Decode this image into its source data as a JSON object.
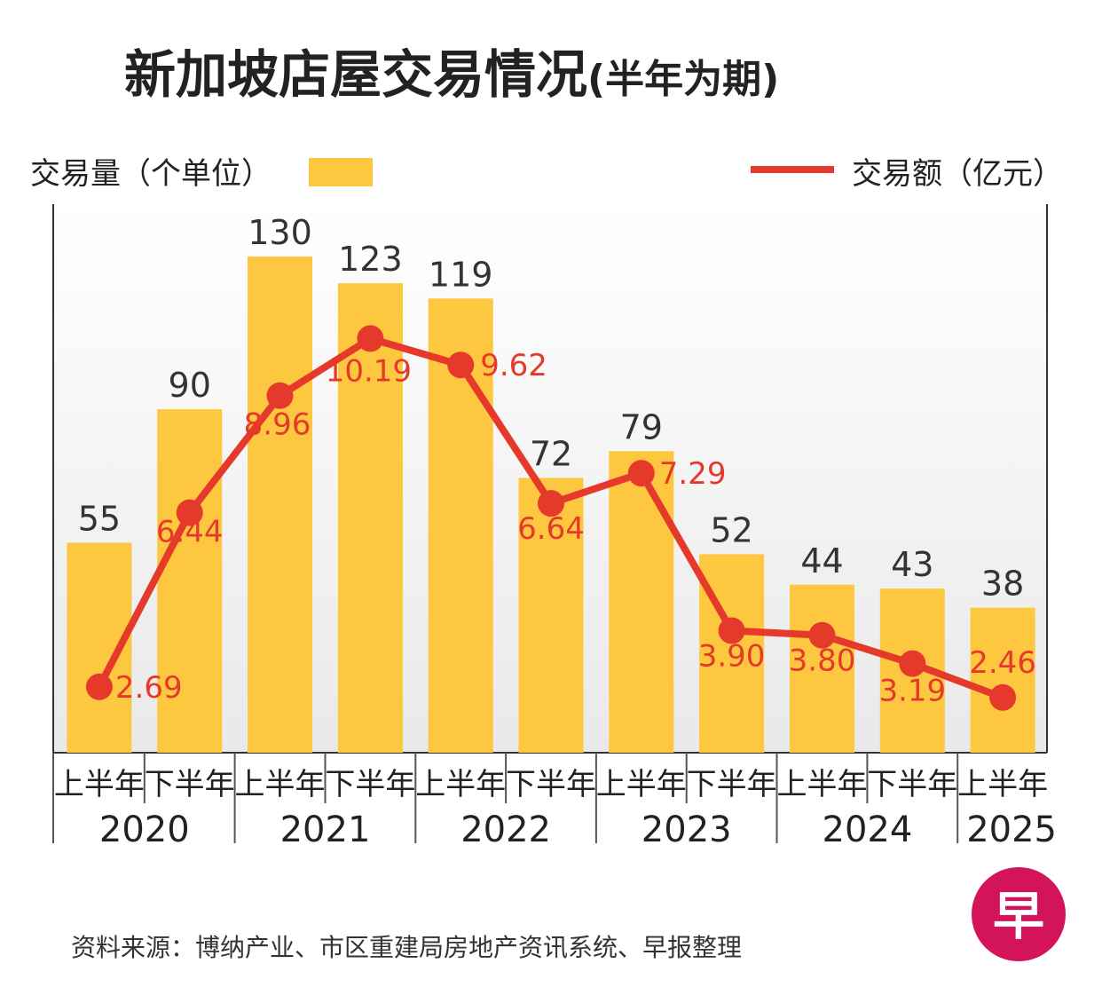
{
  "title": "新加坡店屋交易情况",
  "title_suffix": "(半年为期)",
  "legend": {
    "bars_label": "交易量（个单位）",
    "line_label": "交易额（亿元）"
  },
  "colors": {
    "bar": "#fdc840",
    "line": "#e53a2b",
    "text": "#222222",
    "background_top": "#ffffff",
    "background_bottom": "#e9e9e9",
    "logo": "#d4145a"
  },
  "chart_data": {
    "type": "bar+line",
    "title": "新加坡店屋交易情况(半年为期)",
    "categories": [
      "上半年",
      "下半年",
      "上半年",
      "下半年",
      "上半年",
      "下半年",
      "上半年",
      "下半年",
      "上半年",
      "下半年",
      "上半年"
    ],
    "years": [
      {
        "label": "2020",
        "span": 2
      },
      {
        "label": "2021",
        "span": 2
      },
      {
        "label": "2022",
        "span": 2
      },
      {
        "label": "2023",
        "span": 2
      },
      {
        "label": "2024",
        "span": 2
      },
      {
        "label": "2025",
        "span": 1
      }
    ],
    "series": [
      {
        "name": "交易量（个单位）",
        "type": "bar",
        "values": [
          55,
          90,
          130,
          123,
          119,
          72,
          79,
          52,
          44,
          43,
          38
        ],
        "labels": [
          "55",
          "90",
          "130",
          "123",
          "119",
          "72",
          "79",
          "52",
          "44",
          "43",
          "38"
        ]
      },
      {
        "name": "交易额（亿元）",
        "type": "line",
        "values": [
          2.69,
          6.44,
          8.96,
          10.19,
          9.62,
          6.64,
          7.29,
          3.9,
          3.8,
          3.19,
          2.46
        ],
        "labels": [
          "2.69",
          "6.44",
          "8.96",
          "10.19",
          "9.62",
          "6.64",
          "7.29",
          "3.90",
          "3.80",
          "3.19",
          "2.46"
        ]
      }
    ],
    "bar_ylim": [
      0,
      145
    ],
    "line_ylim": [
      1.8,
      11.4
    ]
  },
  "source": "资料来源：博纳产业、市区重建局房地产资讯系统、早报整理",
  "logo_char": "早"
}
